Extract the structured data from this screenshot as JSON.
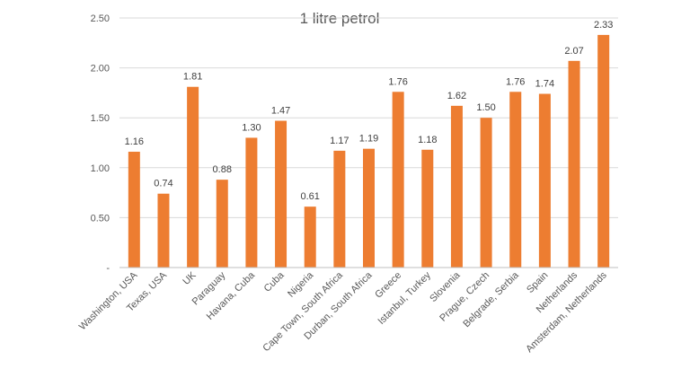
{
  "chart_data": {
    "type": "bar",
    "title": "1 litre petrol",
    "xlabel": "",
    "ylabel": "",
    "categories": [
      "Washington, USA",
      "Texas, USA",
      "UK",
      "Paraguay",
      "Havana, Cuba",
      "Cuba",
      "Nigeria",
      "Cape Town, South Africa",
      "Durban, South Africa",
      "Greece",
      "Istanbul, Turkey",
      "Slovenia",
      "Prague, Czech",
      "Belgrade, Serbia",
      "Spain",
      "Netherlands",
      "Amsterdam, Netherlands"
    ],
    "values": [
      1.16,
      0.74,
      1.81,
      0.88,
      1.3,
      1.47,
      0.61,
      1.17,
      1.19,
      1.76,
      1.18,
      1.62,
      1.5,
      1.76,
      1.74,
      2.07,
      2.33
    ],
    "data_labels": [
      "1.16",
      "0.74",
      "1.81",
      "0.88",
      "1.30",
      "1.47",
      "0.61",
      "1.17",
      "1.19",
      "1.76",
      "1.18",
      "1.62",
      "1.50",
      "1.76",
      "1.74",
      "2.07",
      "2.33"
    ],
    "ylim": [
      0,
      2.5
    ],
    "yticks": [
      0,
      0.5,
      1.0,
      1.5,
      2.0,
      2.5
    ],
    "ytick_labels": [
      "-",
      "0.50",
      "1.00",
      "1.50",
      "2.00",
      "2.50"
    ],
    "grid": true,
    "legend": "none",
    "bar_color": "#ED7D31"
  }
}
